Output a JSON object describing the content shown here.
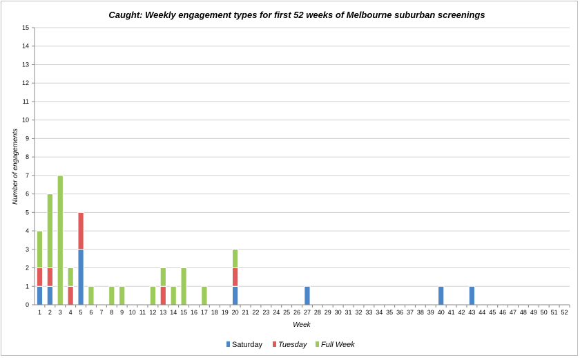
{
  "chart_data": {
    "type": "bar",
    "stacked": true,
    "title": "Caught: Weekly engagement types for first 52 weeks of Melbourne suburban screenings",
    "xlabel": "Week",
    "ylabel": "Number of engagements",
    "ylim": [
      0,
      15
    ],
    "yticks": [
      "0",
      "1",
      "2",
      "3",
      "4",
      "5",
      "6",
      "7",
      "8",
      "9",
      "10",
      "11",
      "12",
      "13",
      "14",
      "15"
    ],
    "grid": true,
    "legend_position": "bottom",
    "categories": [
      "1",
      "2",
      "3",
      "4",
      "5",
      "6",
      "7",
      "8",
      "9",
      "10",
      "11",
      "12",
      "13",
      "14",
      "15",
      "16",
      "17",
      "18",
      "19",
      "20",
      "21",
      "22",
      "23",
      "24",
      "25",
      "26",
      "27",
      "28",
      "29",
      "30",
      "31",
      "32",
      "33",
      "34",
      "35",
      "36",
      "37",
      "38",
      "39",
      "40",
      "41",
      "42",
      "43",
      "44",
      "45",
      "46",
      "47",
      "48",
      "49",
      "50",
      "51",
      "52"
    ],
    "series": [
      {
        "name": "Saturday",
        "color": "#4a86c8",
        "italic": false,
        "values": [
          1,
          1,
          0,
          0,
          3,
          0,
          0,
          0,
          0,
          0,
          0,
          0,
          0,
          0,
          0,
          0,
          0,
          0,
          0,
          1,
          0,
          0,
          0,
          0,
          0,
          0,
          1,
          0,
          0,
          0,
          0,
          0,
          0,
          0,
          0,
          0,
          0,
          0,
          0,
          1,
          0,
          0,
          1,
          0,
          0,
          0,
          0,
          0,
          0,
          0,
          0,
          0
        ]
      },
      {
        "name": "Tuesday",
        "color": "#e05a5a",
        "italic": true,
        "values": [
          1,
          1,
          0,
          1,
          2,
          0,
          0,
          0,
          0,
          0,
          0,
          0,
          1,
          0,
          0,
          0,
          0,
          0,
          0,
          1,
          0,
          0,
          0,
          0,
          0,
          0,
          0,
          0,
          0,
          0,
          0,
          0,
          0,
          0,
          0,
          0,
          0,
          0,
          0,
          0,
          0,
          0,
          0,
          0,
          0,
          0,
          0,
          0,
          0,
          0,
          0,
          0
        ]
      },
      {
        "name": "Full Week",
        "color": "#9ccb5b",
        "italic": true,
        "values": [
          2,
          4,
          7,
          1,
          0,
          1,
          0,
          1,
          1,
          0,
          0,
          1,
          1,
          1,
          2,
          0,
          1,
          0,
          0,
          1,
          0,
          0,
          0,
          0,
          0,
          0,
          0,
          0,
          0,
          0,
          0,
          0,
          0,
          0,
          0,
          0,
          0,
          0,
          0,
          0,
          0,
          0,
          0,
          0,
          0,
          0,
          0,
          0,
          0,
          0,
          0,
          0
        ]
      }
    ]
  }
}
